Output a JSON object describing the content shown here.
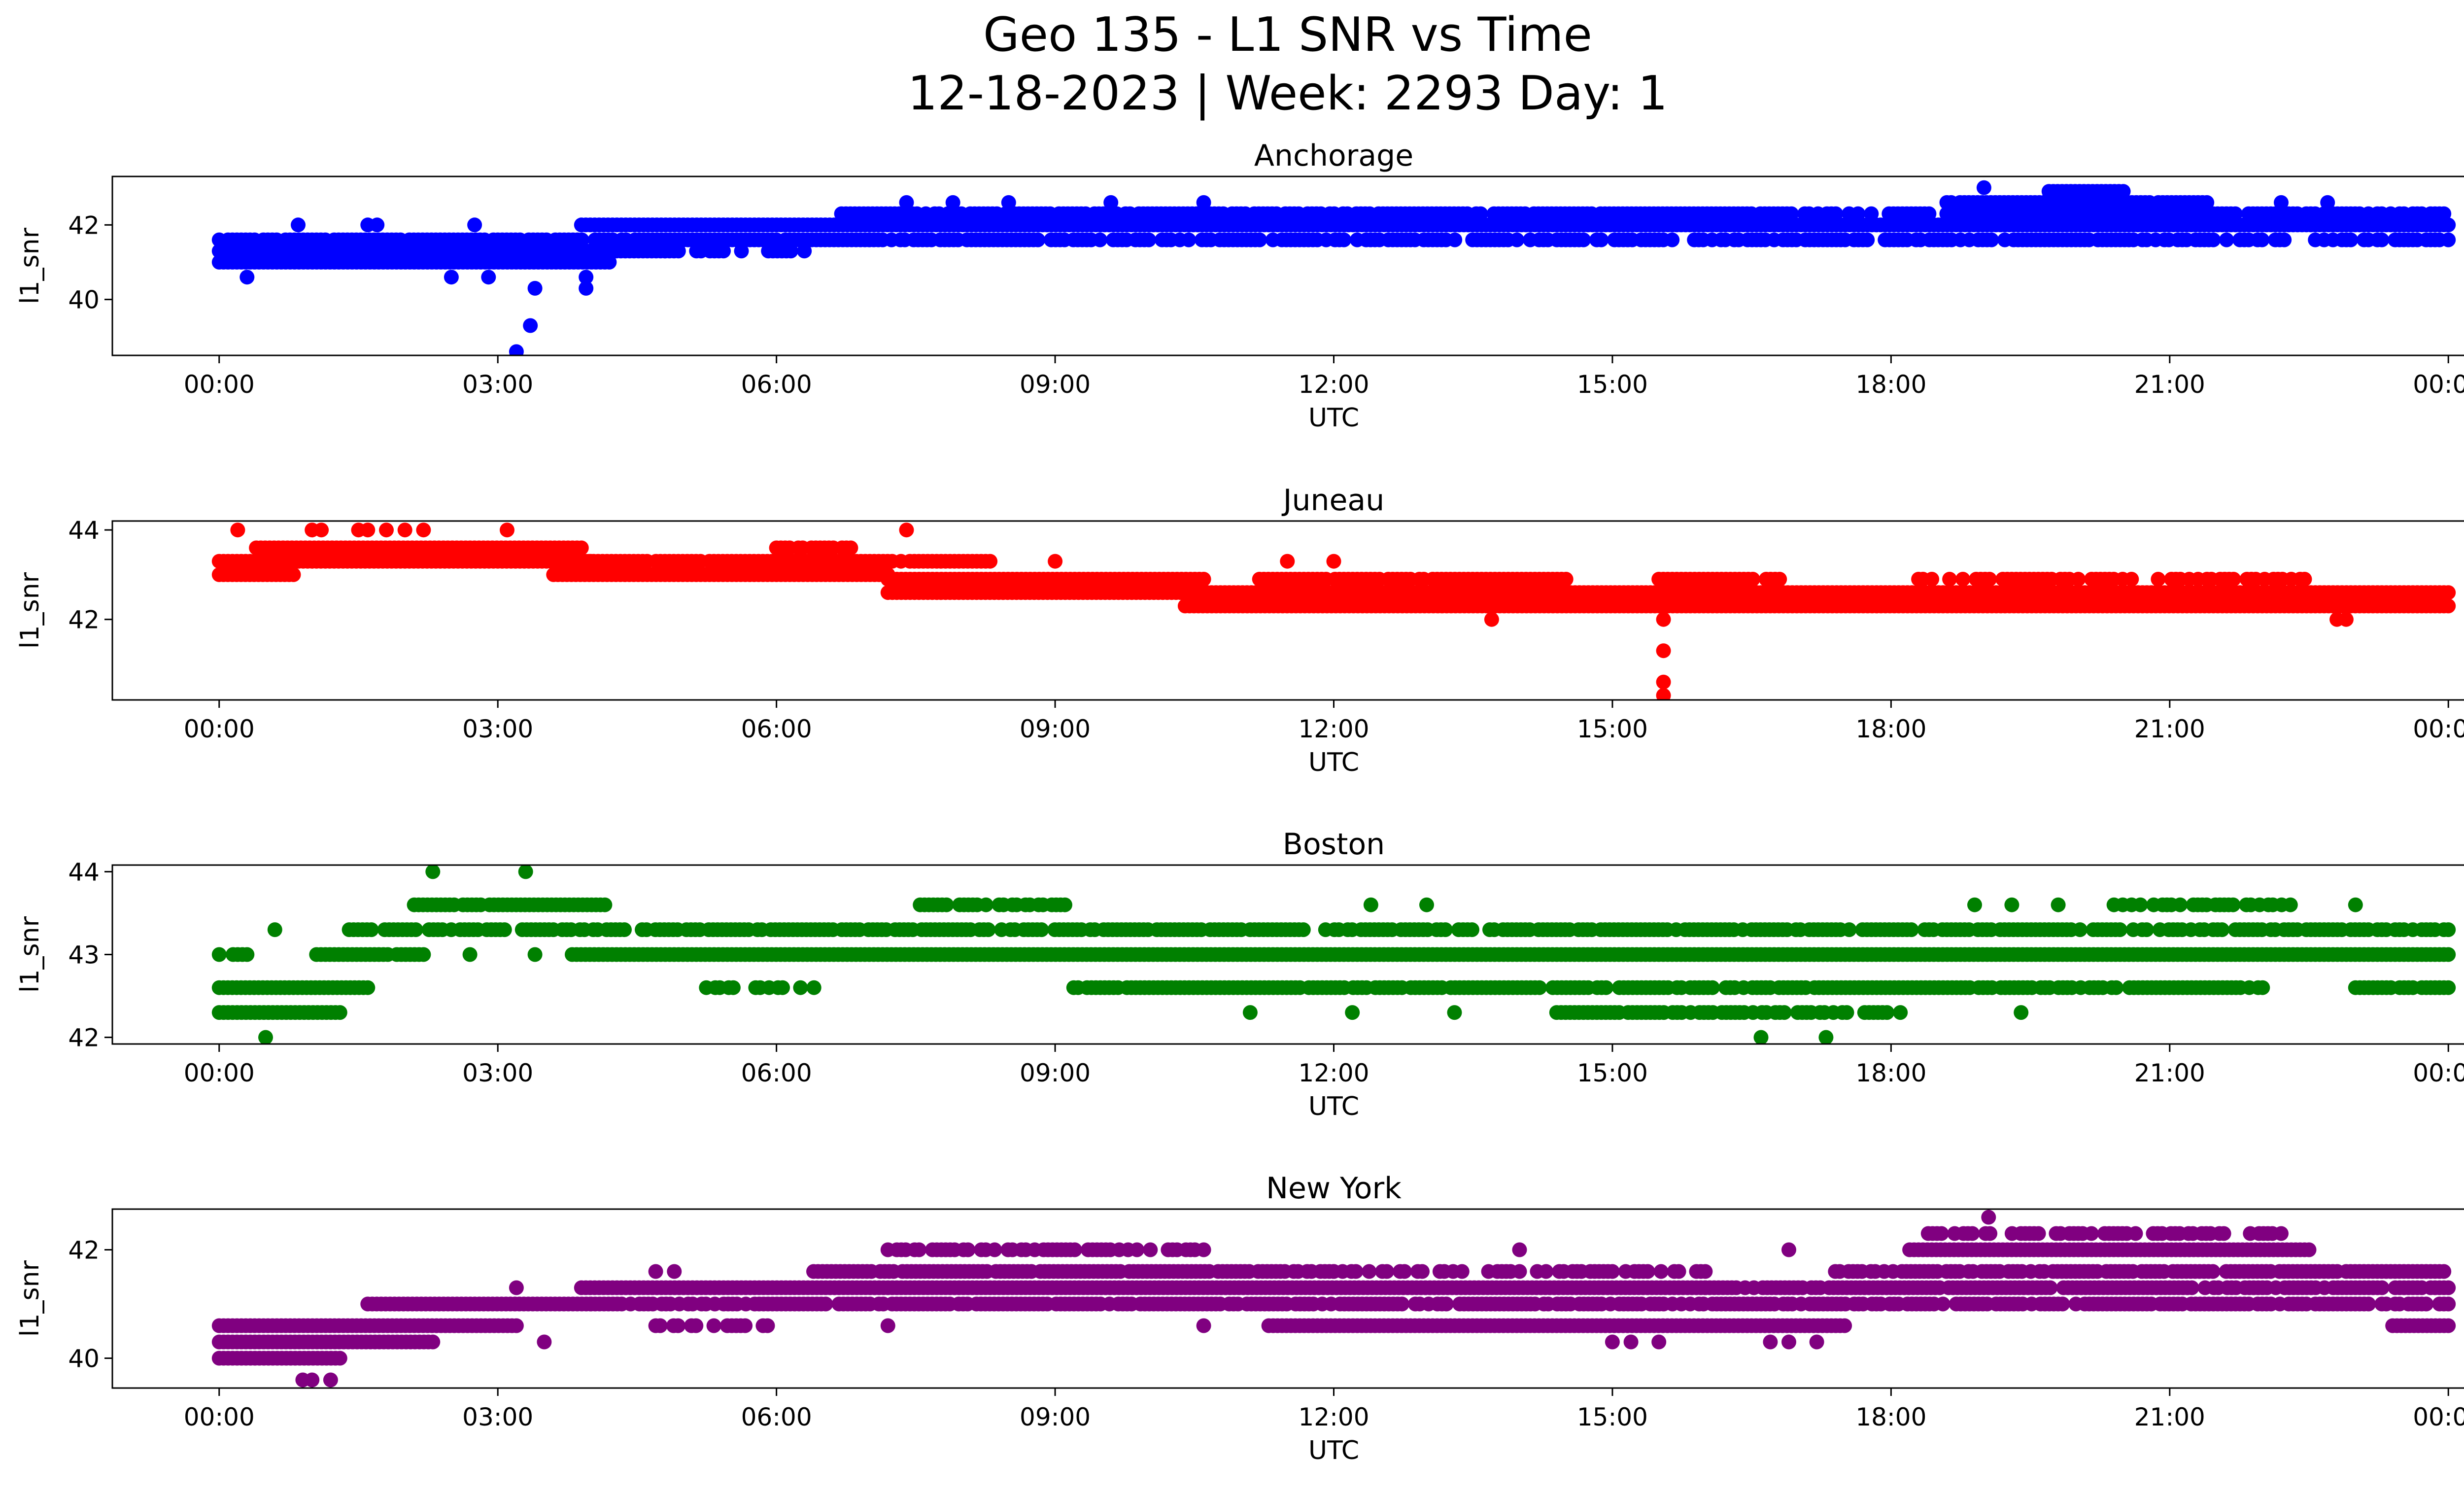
{
  "figure": {
    "title_line1": "Geo 135 - L1 SNR vs Time",
    "title_line2": "12-18-2023 | Week: 2293 Day: 1"
  },
  "chart_data": [
    {
      "type": "scatter",
      "title": "Anchorage",
      "xlabel": "UTC",
      "ylabel": "l1_snr",
      "color": "#0000ff",
      "x_unit": "hours UTC",
      "xlim": [
        -1.15,
        25.15
      ],
      "ylim": [
        38.5,
        43.3
      ],
      "x_ticks": [
        0,
        3,
        6,
        9,
        12,
        15,
        18,
        21,
        24
      ],
      "x_tick_labels": [
        "00:00",
        "03:00",
        "06:00",
        "09:00",
        "12:00",
        "15:00",
        "18:00",
        "21:00",
        "00:00"
      ],
      "y_ticks": [
        40,
        42
      ],
      "y_tick_labels": [
        "40",
        "42"
      ],
      "bands": [
        {
          "y": 41.0,
          "from": 0.0,
          "to": 4.2,
          "density": 1.0
        },
        {
          "y": 41.3,
          "from": 0.0,
          "to": 4.8,
          "density": 1.0
        },
        {
          "y": 41.6,
          "from": 0.0,
          "to": 7.0,
          "density": 0.9
        },
        {
          "y": 41.6,
          "from": 7.0,
          "to": 24.0,
          "density": 0.7
        },
        {
          "y": 42.0,
          "from": 3.9,
          "to": 24.0,
          "density": 1.0
        },
        {
          "y": 41.3,
          "from": 4.8,
          "to": 6.3,
          "density": 0.7
        },
        {
          "y": 42.3,
          "from": 6.7,
          "to": 24.0,
          "density": 0.85
        },
        {
          "y": 42.6,
          "from": 18.6,
          "to": 21.4,
          "density": 0.9
        },
        {
          "y": 42.9,
          "from": 19.7,
          "to": 20.5,
          "density": 1.0
        }
      ],
      "points": [
        {
          "x": 3.2,
          "y": 38.6
        },
        {
          "x": 3.35,
          "y": 39.3
        },
        {
          "x": 3.4,
          "y": 40.3
        },
        {
          "x": 3.95,
          "y": 40.3
        },
        {
          "x": 3.95,
          "y": 40.6
        },
        {
          "x": 0.3,
          "y": 40.6
        },
        {
          "x": 2.5,
          "y": 40.6
        },
        {
          "x": 2.9,
          "y": 40.6
        },
        {
          "x": 0.85,
          "y": 42.0
        },
        {
          "x": 1.6,
          "y": 42.0
        },
        {
          "x": 1.7,
          "y": 42.0
        },
        {
          "x": 2.75,
          "y": 42.0
        },
        {
          "x": 19.0,
          "y": 43.0
        },
        {
          "x": 7.4,
          "y": 42.6
        },
        {
          "x": 7.9,
          "y": 42.6
        },
        {
          "x": 8.5,
          "y": 42.6
        },
        {
          "x": 9.6,
          "y": 42.6
        },
        {
          "x": 10.6,
          "y": 42.6
        },
        {
          "x": 22.2,
          "y": 42.6
        },
        {
          "x": 22.7,
          "y": 42.6
        }
      ]
    },
    {
      "type": "scatter",
      "title": "Juneau",
      "xlabel": "UTC",
      "ylabel": "l1_snr",
      "color": "#ff0000",
      "x_unit": "hours UTC",
      "xlim": [
        -1.15,
        25.15
      ],
      "ylim": [
        40.2,
        44.2
      ],
      "x_ticks": [
        0,
        3,
        6,
        9,
        12,
        15,
        18,
        21,
        24
      ],
      "x_tick_labels": [
        "00:00",
        "03:00",
        "06:00",
        "09:00",
        "12:00",
        "15:00",
        "18:00",
        "21:00",
        "00:00"
      ],
      "y_ticks": [
        42,
        44
      ],
      "y_tick_labels": [
        "42",
        "44"
      ],
      "bands": [
        {
          "y": 43.0,
          "from": 0.0,
          "to": 0.8,
          "density": 1.0
        },
        {
          "y": 43.3,
          "from": 0.0,
          "to": 4.0,
          "density": 1.0
        },
        {
          "y": 43.6,
          "from": 0.4,
          "to": 3.9,
          "density": 1.0
        },
        {
          "y": 43.0,
          "from": 3.6,
          "to": 7.2,
          "density": 1.0
        },
        {
          "y": 43.3,
          "from": 3.6,
          "to": 8.3,
          "density": 0.9
        },
        {
          "y": 43.6,
          "from": 6.0,
          "to": 6.8,
          "density": 0.8
        },
        {
          "y": 42.9,
          "from": 7.2,
          "to": 10.6,
          "density": 1.0
        },
        {
          "y": 42.6,
          "from": 7.2,
          "to": 24.0,
          "density": 1.0
        },
        {
          "y": 42.3,
          "from": 10.4,
          "to": 24.0,
          "density": 1.0
        },
        {
          "y": 42.9,
          "from": 11.2,
          "to": 14.5,
          "density": 0.9
        },
        {
          "y": 42.9,
          "from": 15.5,
          "to": 16.8,
          "density": 0.8
        },
        {
          "y": 42.9,
          "from": 18.2,
          "to": 22.5,
          "density": 0.5
        }
      ],
      "points": [
        {
          "x": 0.2,
          "y": 44.0
        },
        {
          "x": 1.0,
          "y": 44.0
        },
        {
          "x": 1.1,
          "y": 44.0
        },
        {
          "x": 1.5,
          "y": 44.0
        },
        {
          "x": 1.6,
          "y": 44.0
        },
        {
          "x": 1.8,
          "y": 44.0
        },
        {
          "x": 2.0,
          "y": 44.0
        },
        {
          "x": 2.2,
          "y": 44.0
        },
        {
          "x": 3.1,
          "y": 44.0
        },
        {
          "x": 7.4,
          "y": 44.0
        },
        {
          "x": 15.55,
          "y": 40.3
        },
        {
          "x": 15.55,
          "y": 40.6
        },
        {
          "x": 15.55,
          "y": 41.3
        },
        {
          "x": 15.55,
          "y": 42.0
        },
        {
          "x": 13.7,
          "y": 42.0
        },
        {
          "x": 22.8,
          "y": 42.0
        },
        {
          "x": 22.9,
          "y": 42.0
        },
        {
          "x": 12.0,
          "y": 43.3
        },
        {
          "x": 9.0,
          "y": 43.3
        },
        {
          "x": 11.5,
          "y": 43.3
        }
      ]
    },
    {
      "type": "scatter",
      "title": "Boston",
      "xlabel": "UTC",
      "ylabel": "l1_snr",
      "color": "#008000",
      "x_unit": "hours UTC",
      "xlim": [
        -1.15,
        25.15
      ],
      "ylim": [
        41.92,
        44.08
      ],
      "x_ticks": [
        0,
        3,
        6,
        9,
        12,
        15,
        18,
        21,
        24
      ],
      "x_tick_labels": [
        "00:00",
        "03:00",
        "06:00",
        "09:00",
        "12:00",
        "15:00",
        "18:00",
        "21:00",
        "00:00"
      ],
      "y_ticks": [
        42,
        43,
        44
      ],
      "y_tick_labels": [
        "42",
        "43",
        "44"
      ],
      "bands": [
        {
          "y": 42.3,
          "from": 0.0,
          "to": 1.3,
          "density": 1.0
        },
        {
          "y": 42.6,
          "from": 0.0,
          "to": 1.6,
          "density": 1.0
        },
        {
          "y": 43.0,
          "from": 0.0,
          "to": 0.3,
          "density": 0.6
        },
        {
          "y": 43.0,
          "from": 1.0,
          "to": 2.2,
          "density": 0.8
        },
        {
          "y": 43.3,
          "from": 1.4,
          "to": 24.0,
          "density": 0.8
        },
        {
          "y": 43.6,
          "from": 2.1,
          "to": 4.2,
          "density": 0.9
        },
        {
          "y": 43.0,
          "from": 3.8,
          "to": 24.0,
          "density": 1.0
        },
        {
          "y": 42.6,
          "from": 5.1,
          "to": 6.5,
          "density": 0.6
        },
        {
          "y": 42.6,
          "from": 9.2,
          "to": 22.0,
          "density": 0.85
        },
        {
          "y": 42.6,
          "from": 23.0,
          "to": 24.0,
          "density": 0.9
        },
        {
          "y": 42.3,
          "from": 14.4,
          "to": 18.1,
          "density": 0.7
        },
        {
          "y": 43.6,
          "from": 7.5,
          "to": 9.2,
          "density": 0.7
        },
        {
          "y": 43.6,
          "from": 20.4,
          "to": 22.3,
          "density": 0.6
        }
      ],
      "points": [
        {
          "x": 0.5,
          "y": 42.0
        },
        {
          "x": 16.6,
          "y": 42.0
        },
        {
          "x": 17.3,
          "y": 42.0
        },
        {
          "x": 2.3,
          "y": 44.0
        },
        {
          "x": 3.3,
          "y": 44.0
        },
        {
          "x": 12.4,
          "y": 43.6
        },
        {
          "x": 13.0,
          "y": 43.6
        },
        {
          "x": 18.9,
          "y": 43.6
        },
        {
          "x": 19.3,
          "y": 43.6
        },
        {
          "x": 19.8,
          "y": 43.6
        },
        {
          "x": 23.0,
          "y": 43.6
        },
        {
          "x": 11.1,
          "y": 42.3
        },
        {
          "x": 12.2,
          "y": 42.3
        },
        {
          "x": 13.3,
          "y": 42.3
        },
        {
          "x": 19.4,
          "y": 42.3
        },
        {
          "x": 0.6,
          "y": 43.3
        },
        {
          "x": 2.7,
          "y": 43.0
        },
        {
          "x": 3.4,
          "y": 43.0
        }
      ]
    },
    {
      "type": "scatter",
      "title": "New York",
      "xlabel": "UTC",
      "ylabel": "l1_snr",
      "color": "#800080",
      "x_unit": "hours UTC",
      "xlim": [
        -1.15,
        25.15
      ],
      "ylim": [
        39.45,
        42.75
      ],
      "x_ticks": [
        0,
        3,
        6,
        9,
        12,
        15,
        18,
        21,
        24
      ],
      "x_tick_labels": [
        "00:00",
        "03:00",
        "06:00",
        "09:00",
        "12:00",
        "15:00",
        "18:00",
        "21:00",
        "00:00"
      ],
      "y_ticks": [
        40,
        42
      ],
      "y_tick_labels": [
        "40",
        "42"
      ],
      "bands": [
        {
          "y": 40.0,
          "from": 0.0,
          "to": 1.3,
          "density": 1.0
        },
        {
          "y": 40.3,
          "from": 0.0,
          "to": 2.3,
          "density": 1.0
        },
        {
          "y": 40.6,
          "from": 0.0,
          "to": 3.2,
          "density": 1.0
        },
        {
          "y": 40.6,
          "from": 4.7,
          "to": 6.0,
          "density": 0.5
        },
        {
          "y": 40.6,
          "from": 11.3,
          "to": 17.5,
          "density": 1.0
        },
        {
          "y": 40.6,
          "from": 23.4,
          "to": 24.0,
          "density": 1.0
        },
        {
          "y": 41.0,
          "from": 1.6,
          "to": 4.0,
          "density": 1.0
        },
        {
          "y": 41.0,
          "from": 4.0,
          "to": 24.0,
          "density": 0.85
        },
        {
          "y": 41.3,
          "from": 3.9,
          "to": 16.0,
          "density": 1.0
        },
        {
          "y": 41.3,
          "from": 16.0,
          "to": 24.0,
          "density": 0.9
        },
        {
          "y": 41.6,
          "from": 6.4,
          "to": 12.0,
          "density": 0.9
        },
        {
          "y": 41.6,
          "from": 12.0,
          "to": 16.0,
          "density": 0.6
        },
        {
          "y": 41.6,
          "from": 17.4,
          "to": 24.0,
          "density": 0.9
        },
        {
          "y": 42.0,
          "from": 7.2,
          "to": 10.6,
          "density": 0.6
        },
        {
          "y": 42.0,
          "from": 18.2,
          "to": 22.5,
          "density": 1.0
        },
        {
          "y": 42.3,
          "from": 18.4,
          "to": 22.2,
          "density": 0.6
        }
      ],
      "points": [
        {
          "x": 0.9,
          "y": 39.6
        },
        {
          "x": 1.0,
          "y": 39.6
        },
        {
          "x": 1.2,
          "y": 39.6
        },
        {
          "x": 19.05,
          "y": 42.6
        },
        {
          "x": 14.0,
          "y": 42.0
        },
        {
          "x": 16.9,
          "y": 42.0
        },
        {
          "x": 7.2,
          "y": 40.6
        },
        {
          "x": 10.6,
          "y": 40.6
        },
        {
          "x": 15.0,
          "y": 40.3
        },
        {
          "x": 15.2,
          "y": 40.3
        },
        {
          "x": 15.5,
          "y": 40.3
        },
        {
          "x": 16.7,
          "y": 40.3
        },
        {
          "x": 16.9,
          "y": 40.3
        },
        {
          "x": 17.2,
          "y": 40.3
        },
        {
          "x": 3.5,
          "y": 40.3
        },
        {
          "x": 4.7,
          "y": 41.6
        },
        {
          "x": 4.9,
          "y": 41.6
        },
        {
          "x": 3.2,
          "y": 41.3
        }
      ]
    }
  ]
}
